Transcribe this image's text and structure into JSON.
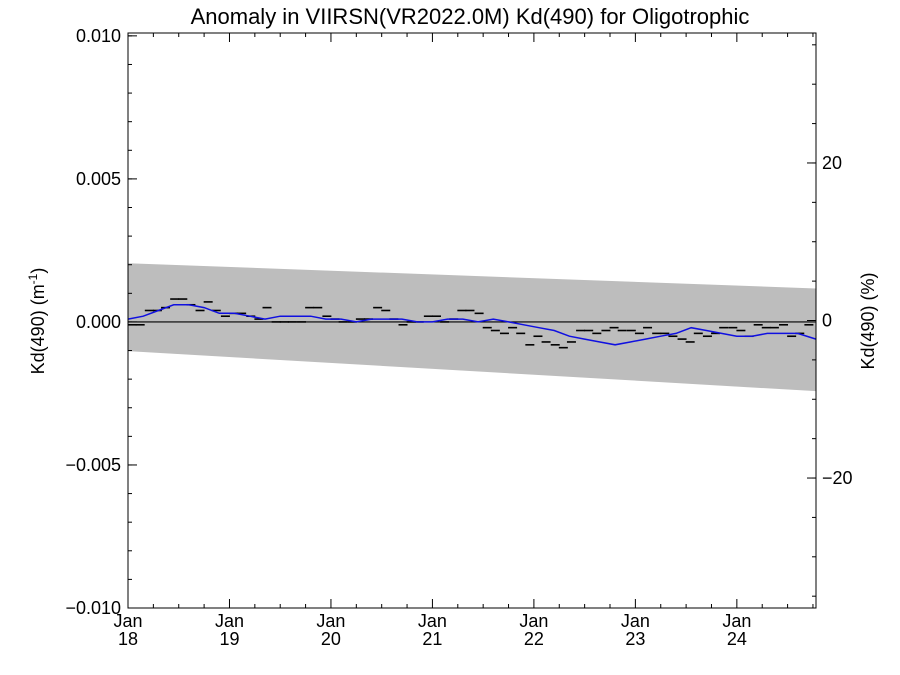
{
  "chart_data": {
    "type": "line",
    "title": "Anomaly in VIIRSN(VR2022.0M) Kd(490) for Oligotrophic",
    "ylabel_main": "Kd(490) (m",
    "ylabel_sup": "-1",
    "ylabel_close": ")",
    "ylabel_right": "Kd(490) (%)",
    "xlabel": "",
    "xlim": [
      2018.0,
      2024.78
    ],
    "ylim": [
      -0.01,
      0.0101
    ],
    "ylim_right_percent": [
      -36.5,
      36.5
    ],
    "x_ticks": [
      {
        "x": 2018,
        "month": "Jan",
        "year": "18"
      },
      {
        "x": 2019,
        "month": "Jan",
        "year": "19"
      },
      {
        "x": 2020,
        "month": "Jan",
        "year": "20"
      },
      {
        "x": 2021,
        "month": "Jan",
        "year": "21"
      },
      {
        "x": 2022,
        "month": "Jan",
        "year": "22"
      },
      {
        "x": 2023,
        "month": "Jan",
        "year": "23"
      },
      {
        "x": 2024,
        "month": "Jan",
        "year": "24"
      }
    ],
    "y_ticks": [
      {
        "value": 0.01,
        "label": "0.010"
      },
      {
        "value": 0.005,
        "label": "0.005"
      },
      {
        "value": 0.0,
        "label": "0.000"
      },
      {
        "value": -0.005,
        "label": "−0.005"
      },
      {
        "value": -0.01,
        "label": "−0.010"
      }
    ],
    "y_ticks_right": [
      {
        "value": 20,
        "label": "20"
      },
      {
        "value": 0,
        "label": "0"
      },
      {
        "value": -20,
        "label": "−20"
      }
    ],
    "confidence_band": {
      "x": [
        2018.0,
        2024.78
      ],
      "upper": [
        0.00205,
        0.00117
      ],
      "lower": [
        -0.00102,
        -0.00242
      ]
    },
    "zero_line": 0.0,
    "series": [
      {
        "kind": "monthly_markers",
        "x": [
          2018.04,
          2018.12,
          2018.21,
          2018.29,
          2018.37,
          2018.46,
          2018.54,
          2018.62,
          2018.71,
          2018.79,
          2018.87,
          2018.96,
          2019.04,
          2019.12,
          2019.21,
          2019.29,
          2019.37,
          2019.46,
          2019.54,
          2019.62,
          2019.71,
          2019.79,
          2019.87,
          2019.96,
          2020.04,
          2020.12,
          2020.21,
          2020.29,
          2020.37,
          2020.46,
          2020.54,
          2020.62,
          2020.71,
          2020.79,
          2020.87,
          2020.96,
          2021.04,
          2021.12,
          2021.21,
          2021.29,
          2021.37,
          2021.46,
          2021.54,
          2021.62,
          2021.71,
          2021.79,
          2021.87,
          2021.96,
          2022.04,
          2022.12,
          2022.21,
          2022.29,
          2022.37,
          2022.46,
          2022.54,
          2022.62,
          2022.71,
          2022.79,
          2022.87,
          2022.96,
          2023.04,
          2023.12,
          2023.21,
          2023.29,
          2023.37,
          2023.46,
          2023.54,
          2023.62,
          2023.71,
          2023.79,
          2023.87,
          2023.96,
          2024.04,
          2024.12,
          2024.21,
          2024.29,
          2024.37,
          2024.46,
          2024.54,
          2024.62,
          2024.71
        ],
        "values": [
          -0.0001,
          -0.0001,
          0.0004,
          0.0004,
          0.0005,
          0.0008,
          0.0008,
          0.0006,
          0.0004,
          0.0007,
          0.0004,
          0.0002,
          0.0003,
          0.0003,
          0.0002,
          0.0001,
          0.0005,
          0.0,
          0.0,
          0.0,
          0.0,
          0.0005,
          0.0005,
          0.0002,
          0.0001,
          0.0,
          0.0,
          0.0001,
          0.0001,
          0.0005,
          0.0004,
          0.0001,
          -0.0001,
          0.0,
          0.0,
          0.0002,
          0.0002,
          0.0,
          0.0001,
          0.0004,
          0.0004,
          0.0003,
          -0.0002,
          -0.0003,
          -0.0004,
          -0.0002,
          -0.0004,
          -0.0008,
          -0.0005,
          -0.0007,
          -0.0008,
          -0.0009,
          -0.0007,
          -0.0003,
          -0.0003,
          -0.0004,
          -0.0003,
          -0.0002,
          -0.0003,
          -0.0003,
          -0.0004,
          -0.0002,
          -0.0004,
          -0.0004,
          -0.0005,
          -0.0006,
          -0.0007,
          -0.0004,
          -0.0005,
          -0.0004,
          -0.0002,
          -0.0002,
          -0.0003,
          -0.0005,
          -0.0001,
          -0.0002,
          -0.0002,
          -0.0001,
          -0.0005,
          -0.0004,
          -0.0001
        ]
      },
      {
        "kind": "smoothed_line",
        "color": "#1010e0",
        "x": [
          2018.0,
          2018.15,
          2018.3,
          2018.45,
          2018.6,
          2018.75,
          2018.9,
          2019.05,
          2019.2,
          2019.35,
          2019.5,
          2019.65,
          2019.8,
          2019.95,
          2020.1,
          2020.25,
          2020.4,
          2020.55,
          2020.7,
          2020.85,
          2021.0,
          2021.15,
          2021.3,
          2021.45,
          2021.6,
          2021.75,
          2021.9,
          2022.05,
          2022.2,
          2022.35,
          2022.5,
          2022.65,
          2022.8,
          2022.95,
          2023.1,
          2023.25,
          2023.4,
          2023.55,
          2023.7,
          2023.85,
          2024.0,
          2024.15,
          2024.3,
          2024.45,
          2024.6,
          2024.78
        ],
        "values": [
          0.0001,
          0.0002,
          0.0004,
          0.0006,
          0.0006,
          0.0005,
          0.0003,
          0.0003,
          0.0002,
          0.0001,
          0.0002,
          0.0002,
          0.0002,
          0.0001,
          0.0001,
          0.0,
          0.0001,
          0.0001,
          0.0001,
          0.0,
          0.0,
          0.0001,
          0.0001,
          0.0,
          0.0001,
          0.0,
          -0.0001,
          -0.0002,
          -0.0003,
          -0.0005,
          -0.0006,
          -0.0007,
          -0.0008,
          -0.0007,
          -0.0006,
          -0.0005,
          -0.0004,
          -0.0002,
          -0.0003,
          -0.0004,
          -0.0005,
          -0.0005,
          -0.0004,
          -0.0004,
          -0.0004,
          -0.0006
        ]
      }
    ],
    "grid": false,
    "legend": "none"
  }
}
